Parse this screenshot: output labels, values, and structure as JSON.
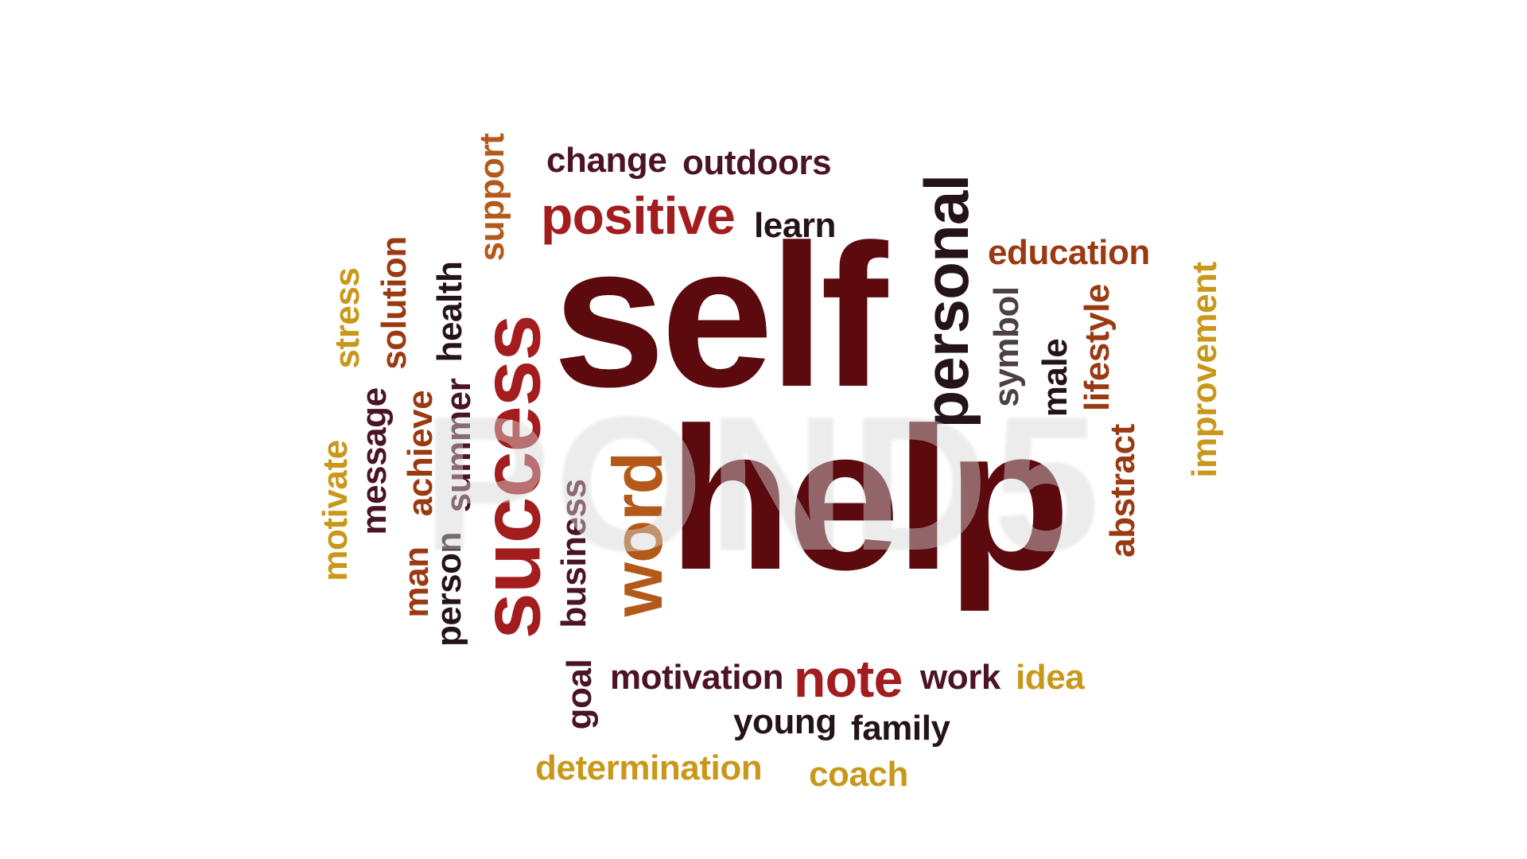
{
  "colors": {
    "dark": "#4a1326",
    "maroon": "#5c0a0e",
    "red": "#a31d1f",
    "rust": "#9a3a12",
    "orange": "#b35a1a",
    "gold": "#c9981b",
    "black": "#24141a",
    "gray": "#4a4046",
    "background": "#ffffff"
  },
  "watermark": "POND5",
  "words": {
    "self": "self",
    "help": "help",
    "success": "success",
    "positive": "positive",
    "change": "change",
    "outdoors": "outdoors",
    "learn": "learn",
    "personal": "personal",
    "education": "education",
    "symbol": "symbol",
    "male": "male",
    "lifestyle": "lifestyle",
    "improvement": "improvement",
    "abstract": "abstract",
    "support": "support",
    "health": "health",
    "solution": "solution",
    "stress": "stress",
    "motivate": "motivate",
    "message": "message",
    "achieve": "achieve",
    "summer": "summer",
    "man": "man",
    "person": "person",
    "business": "business",
    "word": "word",
    "goal": "goal",
    "motivation": "motivation",
    "note": "note",
    "work": "work",
    "idea": "idea",
    "young": "young",
    "family": "family",
    "determination": "determination",
    "coach": "coach"
  }
}
